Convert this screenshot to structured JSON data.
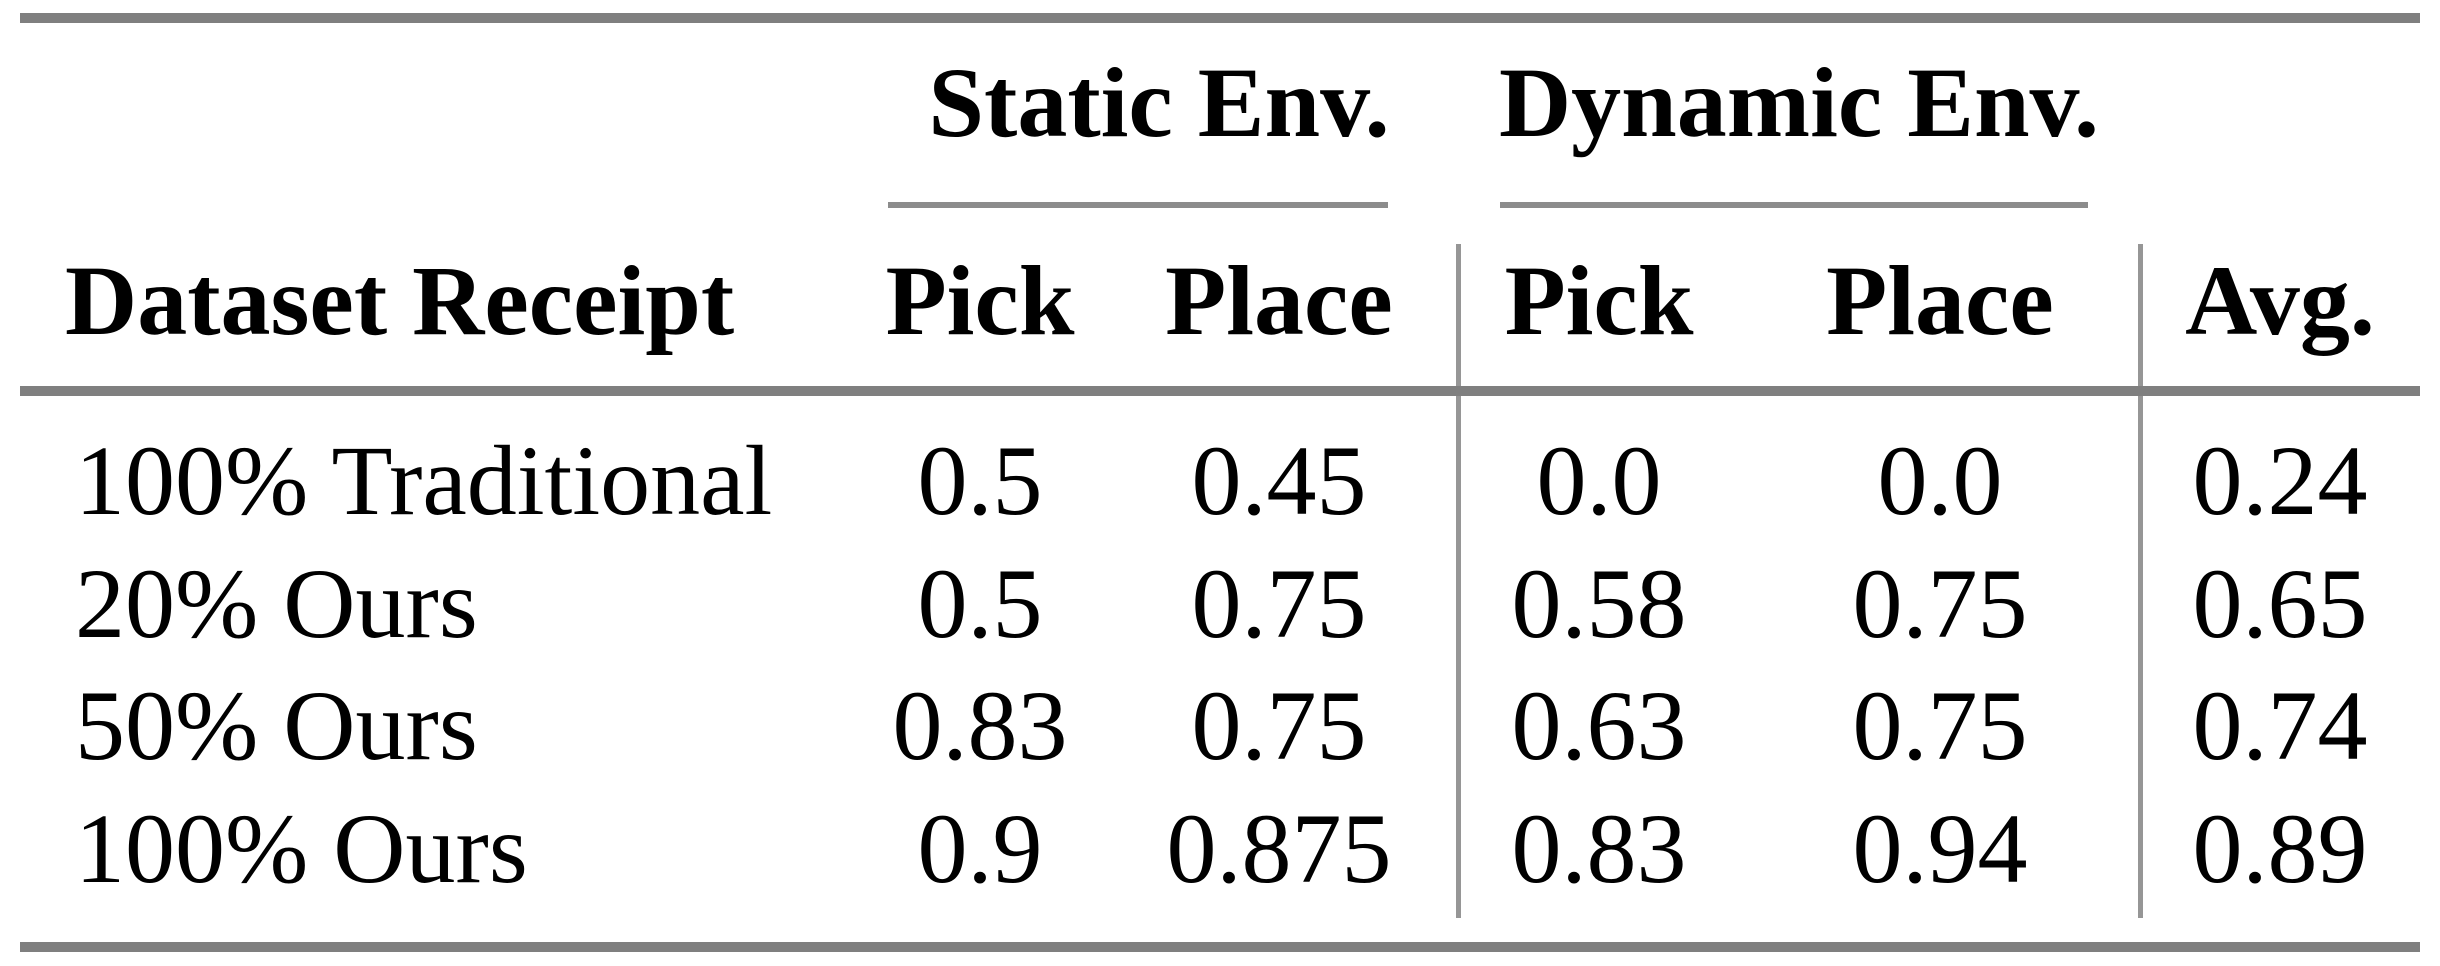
{
  "table": {
    "group_headers": [
      {
        "label": "Static Env."
      },
      {
        "label": "Dynamic Env."
      }
    ],
    "columns": {
      "label": "Dataset Receipt",
      "static_pick": "Pick",
      "static_place": "Place",
      "dynamic_pick": "Pick",
      "dynamic_place": "Place",
      "avg": "Avg."
    },
    "rows": [
      {
        "label": "100% Traditional",
        "static_pick": "0.5",
        "static_place": "0.45",
        "dynamic_pick": "0.0",
        "dynamic_place": "0.0",
        "avg": "0.24"
      },
      {
        "label": "20% Ours",
        "static_pick": "0.5",
        "static_place": "0.75",
        "dynamic_pick": "0.58",
        "dynamic_place": "0.75",
        "avg": "0.65"
      },
      {
        "label": "50% Ours",
        "static_pick": "0.83",
        "static_place": "0.75",
        "dynamic_pick": "0.63",
        "dynamic_place": "0.75",
        "avg": "0.74"
      },
      {
        "label": "100% Ours",
        "static_pick": "0.9",
        "static_place": "0.875",
        "dynamic_pick": "0.83",
        "dynamic_place": "0.94",
        "avg": "0.89"
      }
    ],
    "rule_color": "#7f7f7f",
    "text_color": "#000000"
  },
  "chart_data": {
    "type": "table",
    "column_groups": [
      "Static Env.",
      "Dynamic Env."
    ],
    "columns": [
      "Dataset Receipt",
      "Static Env. Pick",
      "Static Env. Place",
      "Dynamic Env. Pick",
      "Dynamic Env. Place",
      "Avg."
    ],
    "rows": [
      [
        "100% Traditional",
        0.5,
        0.45,
        0.0,
        0.0,
        0.24
      ],
      [
        "20% Ours",
        0.5,
        0.75,
        0.58,
        0.75,
        0.65
      ],
      [
        "50% Ours",
        0.83,
        0.75,
        0.63,
        0.75,
        0.74
      ],
      [
        "100% Ours",
        0.9,
        0.875,
        0.83,
        0.94,
        0.89
      ]
    ]
  }
}
